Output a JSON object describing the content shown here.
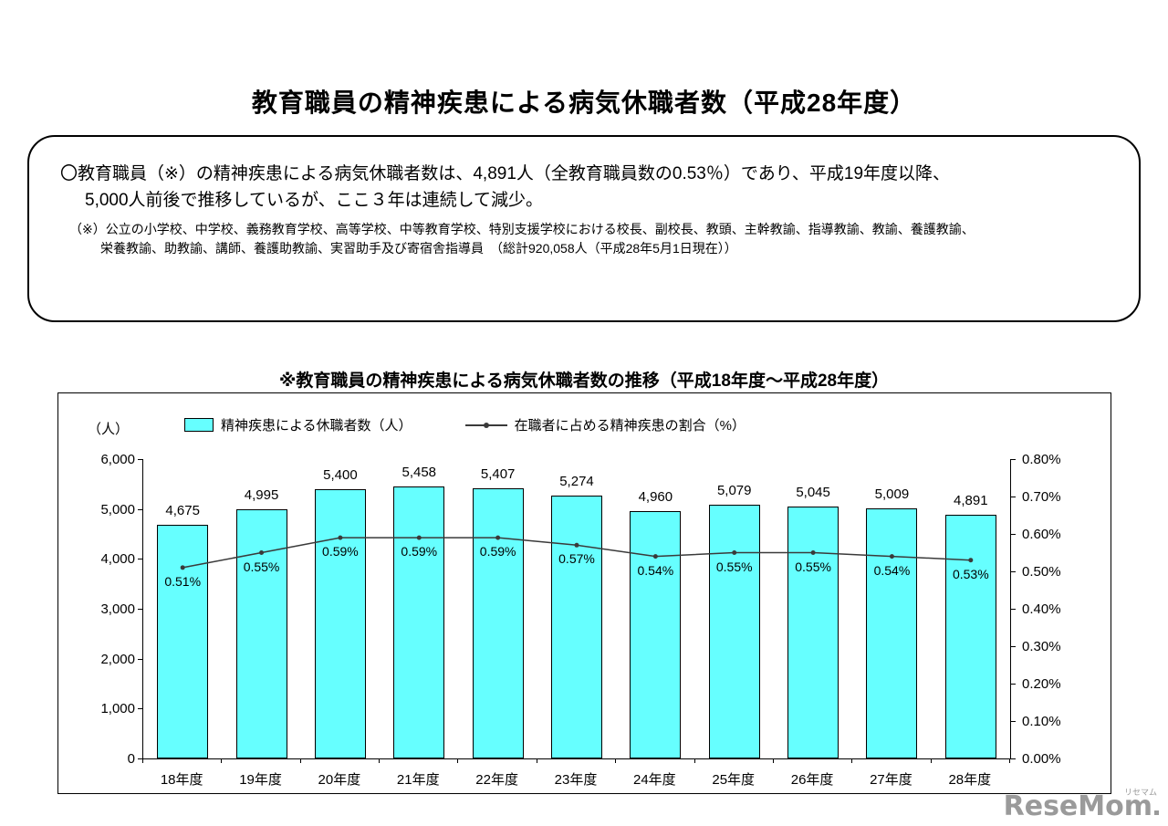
{
  "page": {
    "title": "教育職員の精神疾患による病気休職者数（平成28年度）"
  },
  "summary_box": {
    "main_line1": "〇教育職員（※）の精神疾患による病気休職者数は、4,891人（全教育職員数の0.53％）であり、平成19年度以降、",
    "main_line2": "5,000人前後で推移しているが、ここ３年は連続して減少。",
    "note_line1": "（※）公立の小学校、中学校、義務教育学校、高等学校、中等教育学校、特別支援学校における校長、副校長、教頭、主幹教諭、指導教諭、教諭、養護教諭、",
    "note_line2": "栄養教諭、助教諭、講師、養護助教諭、実習助手及び寄宿舎指導員　（総計920,058人（平成28年5月1日現在））"
  },
  "chart_heading": "※教育職員の精神疾患による病気休職者数の推移（平成18年度～平成28年度）",
  "chart_data": {
    "type": "bar",
    "categories": [
      "18年度",
      "19年度",
      "20年度",
      "21年度",
      "22年度",
      "23年度",
      "24年度",
      "25年度",
      "26年度",
      "27年度",
      "28年度"
    ],
    "series": [
      {
        "name": "精神疾患による休職者数（人）",
        "type": "bar",
        "values": [
          4675,
          4995,
          5400,
          5458,
          5407,
          5274,
          4960,
          5079,
          5045,
          5009,
          4891
        ],
        "labels": [
          "4,675",
          "4,995",
          "5,400",
          "5,458",
          "5,407",
          "5,274",
          "4,960",
          "5,079",
          "5,045",
          "5,009",
          "4,891"
        ]
      },
      {
        "name": "在職者に占める精神疾患の割合（%）",
        "type": "line",
        "values": [
          0.51,
          0.55,
          0.59,
          0.59,
          0.59,
          0.57,
          0.54,
          0.55,
          0.55,
          0.54,
          0.53
        ],
        "labels": [
          "0.51%",
          "0.55%",
          "0.59%",
          "0.59%",
          "0.59%",
          "0.57%",
          "0.54%",
          "0.55%",
          "0.55%",
          "0.54%",
          "0.53%"
        ]
      }
    ],
    "left_axis": {
      "label": "（人）",
      "min": 0,
      "max": 6000,
      "ticks": [
        "6,000",
        "5,000",
        "4,000",
        "3,000",
        "2,000",
        "1,000",
        "0"
      ]
    },
    "right_axis": {
      "min": 0,
      "max": 0.8,
      "ticks": [
        "0.80%",
        "0.70%",
        "0.60%",
        "0.50%",
        "0.40%",
        "0.30%",
        "0.20%",
        "0.10%",
        "0.00%"
      ]
    },
    "bar_color": "#66FFFF",
    "line_color": "#3a3a3a",
    "grid": false,
    "legend_position": "top"
  },
  "watermark": {
    "text": "ReseMom",
    "kana": "リセマム"
  }
}
